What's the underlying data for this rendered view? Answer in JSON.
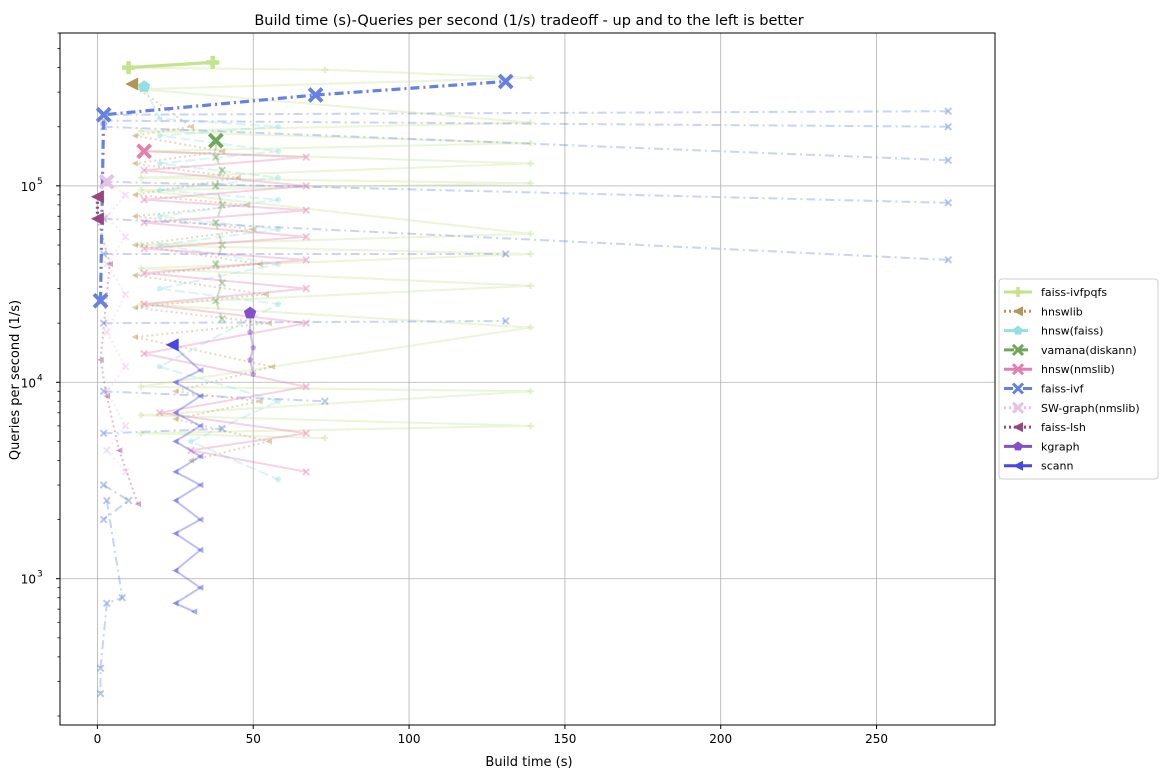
{
  "chart_data": {
    "type": "line",
    "title": "Build time (s)-Queries per second (1/s) tradeoff - up and to the left is better",
    "xlabel": "Build time (s)",
    "ylabel": "Queries per second (1/s)",
    "xlim": [
      -12,
      288
    ],
    "ylim": [
      180,
      600000
    ],
    "yscale": "log",
    "grid": true,
    "legend_position": "right-center",
    "x_ticks": [
      {
        "value": 0,
        "label": "0"
      },
      {
        "value": 50,
        "label": "50"
      },
      {
        "value": 100,
        "label": "100"
      },
      {
        "value": 150,
        "label": "150"
      },
      {
        "value": 200,
        "label": "200"
      },
      {
        "value": 250,
        "label": "250"
      }
    ],
    "y_ticks": [
      {
        "value": 1000,
        "base": "10",
        "exp": "3"
      },
      {
        "value": 10000,
        "base": "10",
        "exp": "4"
      },
      {
        "value": 100000,
        "base": "10",
        "exp": "5"
      }
    ],
    "series": [
      {
        "name": "faiss-ivfpqfs",
        "color": "#c5e38d",
        "dash": "solid",
        "marker": "plus",
        "points": [
          [
            10,
            400000
          ],
          [
            37,
            425000
          ]
        ],
        "faint": [
          [
            [
              10,
              400000
            ],
            [
              73,
              390000
            ],
            [
              139,
              355000
            ],
            [
              14,
              310000
            ],
            [
              139,
              210000
            ],
            [
              14,
              190000
            ],
            [
              139,
              165000
            ],
            [
              14,
              150000
            ],
            [
              139,
              130000
            ],
            [
              14,
              110000
            ],
            [
              139,
              103000
            ],
            [
              14,
              95000
            ],
            [
              139,
              57000
            ],
            [
              14,
              50000
            ],
            [
              139,
              45000
            ],
            [
              14,
              38000
            ],
            [
              139,
              31000
            ],
            [
              14,
              25000
            ],
            [
              139,
              19000
            ],
            [
              14,
              9500
            ],
            [
              139,
              9000
            ],
            [
              14,
              6800
            ],
            [
              139,
              6000
            ],
            [
              14,
              5500
            ],
            [
              73,
              5200
            ]
          ]
        ]
      },
      {
        "name": "hnswlib",
        "color": "#b39653",
        "dash": "dotted",
        "marker": "triangle-left",
        "points": [
          [
            11,
            330000
          ]
        ],
        "faint": [
          [
            [
              11,
              330000
            ],
            [
              30,
              200000
            ],
            [
              12,
              180000
            ],
            [
              40,
              150000
            ],
            [
              12,
              130000
            ],
            [
              45,
              110000
            ],
            [
              12,
              90000
            ],
            [
              48,
              80000
            ],
            [
              12,
              70000
            ],
            [
              50,
              60000
            ],
            [
              12,
              50000
            ],
            [
              52,
              40000
            ],
            [
              12,
              35000
            ],
            [
              54,
              28000
            ],
            [
              12,
              24000
            ],
            [
              55,
              20000
            ],
            [
              12,
              17000
            ],
            [
              56,
              12000
            ],
            [
              25,
              9000
            ],
            [
              52,
              8000
            ],
            [
              25,
              6500
            ],
            [
              55,
              5000
            ],
            [
              30,
              4000
            ]
          ]
        ]
      },
      {
        "name": "hnsw(faiss)",
        "color": "#94e0e0",
        "dash": "dashed",
        "marker": "pentagon",
        "points": [
          [
            15,
            320000
          ]
        ],
        "faint": [
          [
            [
              15,
              320000
            ],
            [
              20,
              220000
            ],
            [
              58,
              200000
            ],
            [
              20,
              180000
            ],
            [
              58,
              150000
            ],
            [
              20,
              130000
            ],
            [
              58,
              110000
            ],
            [
              20,
              95000
            ],
            [
              58,
              85000
            ],
            [
              20,
              70000
            ],
            [
              58,
              60000
            ],
            [
              20,
              50000
            ],
            [
              58,
              40000
            ],
            [
              20,
              30000
            ],
            [
              58,
              25000
            ],
            [
              20,
              12000
            ],
            [
              58,
              8000
            ],
            [
              30,
              5000
            ],
            [
              58,
              3200
            ]
          ]
        ]
      },
      {
        "name": "vamana(diskann)",
        "color": "#6fa659",
        "dash": "dashed",
        "marker": "x",
        "points": [
          [
            38,
            170000
          ]
        ],
        "faint": [
          [
            [
              38,
              170000
            ],
            [
              38,
              140000
            ],
            [
              40,
              120000
            ],
            [
              38,
              100000
            ],
            [
              40,
              80000
            ],
            [
              38,
              65000
            ],
            [
              40,
              50000
            ],
            [
              38,
              40000
            ],
            [
              40,
              32000
            ],
            [
              38,
              26000
            ],
            [
              40,
              21000
            ]
          ]
        ]
      },
      {
        "name": "hnsw(nmslib)",
        "color": "#e47fb2",
        "dash": "solid",
        "marker": "x",
        "points": [
          [
            15,
            150000
          ]
        ],
        "faint": [
          [
            [
              15,
              150000
            ],
            [
              67,
              140000
            ],
            [
              15,
              120000
            ],
            [
              67,
              100000
            ],
            [
              15,
              85000
            ],
            [
              67,
              75000
            ],
            [
              15,
              65000
            ],
            [
              67,
              55000
            ],
            [
              15,
              48000
            ],
            [
              67,
              42000
            ],
            [
              15,
              36000
            ],
            [
              67,
              30000
            ],
            [
              15,
              25000
            ],
            [
              67,
              20000
            ],
            [
              15,
              14000
            ],
            [
              67,
              9500
            ],
            [
              20,
              7000
            ],
            [
              67,
              5500
            ],
            [
              30,
              4500
            ],
            [
              67,
              3500
            ]
          ]
        ]
      },
      {
        "name": "faiss-ivf",
        "color": "#6681e0",
        "dash": "dashdot",
        "marker": "x",
        "points": [
          [
            1,
            26000
          ],
          [
            2,
            230000
          ],
          [
            70,
            290000
          ],
          [
            131,
            340000
          ]
        ],
        "faint": [
          [
            [
              2,
              230000
            ],
            [
              273,
              240000
            ]
          ],
          [
            [
              2,
              215000
            ],
            [
              273,
              200000
            ]
          ],
          [
            [
              2,
              200000
            ],
            [
              273,
              135000
            ]
          ],
          [
            [
              2,
              105000
            ],
            [
              273,
              82000
            ]
          ],
          [
            [
              2,
              68000
            ],
            [
              273,
              42000
            ]
          ],
          [
            [
              2,
              45000
            ],
            [
              131,
              45000
            ]
          ],
          [
            [
              2,
              20000
            ],
            [
              131,
              20500
            ]
          ],
          [
            [
              2,
              9000
            ],
            [
              73,
              8000
            ]
          ],
          [
            [
              2,
              5500
            ],
            [
              40,
              5800
            ]
          ],
          [
            [
              2,
              3000
            ],
            [
              10,
              2500
            ],
            [
              2,
              2000
            ]
          ],
          [
            [
              3,
              2500
            ],
            [
              8,
              800
            ],
            [
              3,
              750
            ],
            [
              1,
              350
            ],
            [
              1,
              260
            ]
          ]
        ]
      },
      {
        "name": "SW-graph(nmslib)",
        "color": "#e8c2e4",
        "dash": "dotted",
        "marker": "x",
        "points": [
          [
            3,
            105000
          ]
        ],
        "faint": [
          [
            [
              3,
              105000
            ],
            [
              9,
              90000
            ],
            [
              3,
              70000
            ],
            [
              9,
              55000
            ],
            [
              3,
              40000
            ],
            [
              9,
              28000
            ],
            [
              3,
              18000
            ],
            [
              9,
              12000
            ],
            [
              3,
              9000
            ],
            [
              9,
              6000
            ],
            [
              3,
              4500
            ],
            [
              9,
              3500
            ]
          ]
        ]
      },
      {
        "name": "faiss-lsh",
        "color": "#99467e",
        "dash": "dotted",
        "marker": "triangle-left",
        "points": [
          [
            0,
            88000
          ],
          [
            0,
            68000
          ]
        ],
        "faint": [
          [
            [
              0,
              68000
            ],
            [
              4,
              40000
            ],
            [
              1,
              13000
            ],
            [
              3,
              8500
            ],
            [
              7,
              4500
            ],
            [
              13,
              2400
            ]
          ]
        ]
      },
      {
        "name": "kgraph",
        "color": "#8250c8",
        "dash": "solid",
        "marker": "pentagon",
        "points": [
          [
            49,
            22500
          ]
        ],
        "faint": [
          [
            [
              49,
              22500
            ],
            [
              49,
              18000
            ],
            [
              50,
              15000
            ],
            [
              49,
              13000
            ],
            [
              50,
              11000
            ]
          ]
        ]
      },
      {
        "name": "scann",
        "color": "#4747e3",
        "dash": "solid",
        "marker": "triangle-left",
        "points": [
          [
            24,
            15500
          ]
        ],
        "faint": [
          [
            [
              24,
              15500
            ],
            [
              33,
              11500
            ],
            [
              25,
              10000
            ],
            [
              33,
              8500
            ],
            [
              25,
              7000
            ],
            [
              33,
              6000
            ],
            [
              25,
              5000
            ],
            [
              33,
              4200
            ],
            [
              25,
              3500
            ],
            [
              33,
              3000
            ],
            [
              25,
              2500
            ],
            [
              33,
              2000
            ],
            [
              25,
              1700
            ],
            [
              33,
              1400
            ],
            [
              25,
              1100
            ],
            [
              33,
              900
            ],
            [
              25,
              750
            ],
            [
              31,
              680
            ]
          ]
        ]
      }
    ]
  }
}
